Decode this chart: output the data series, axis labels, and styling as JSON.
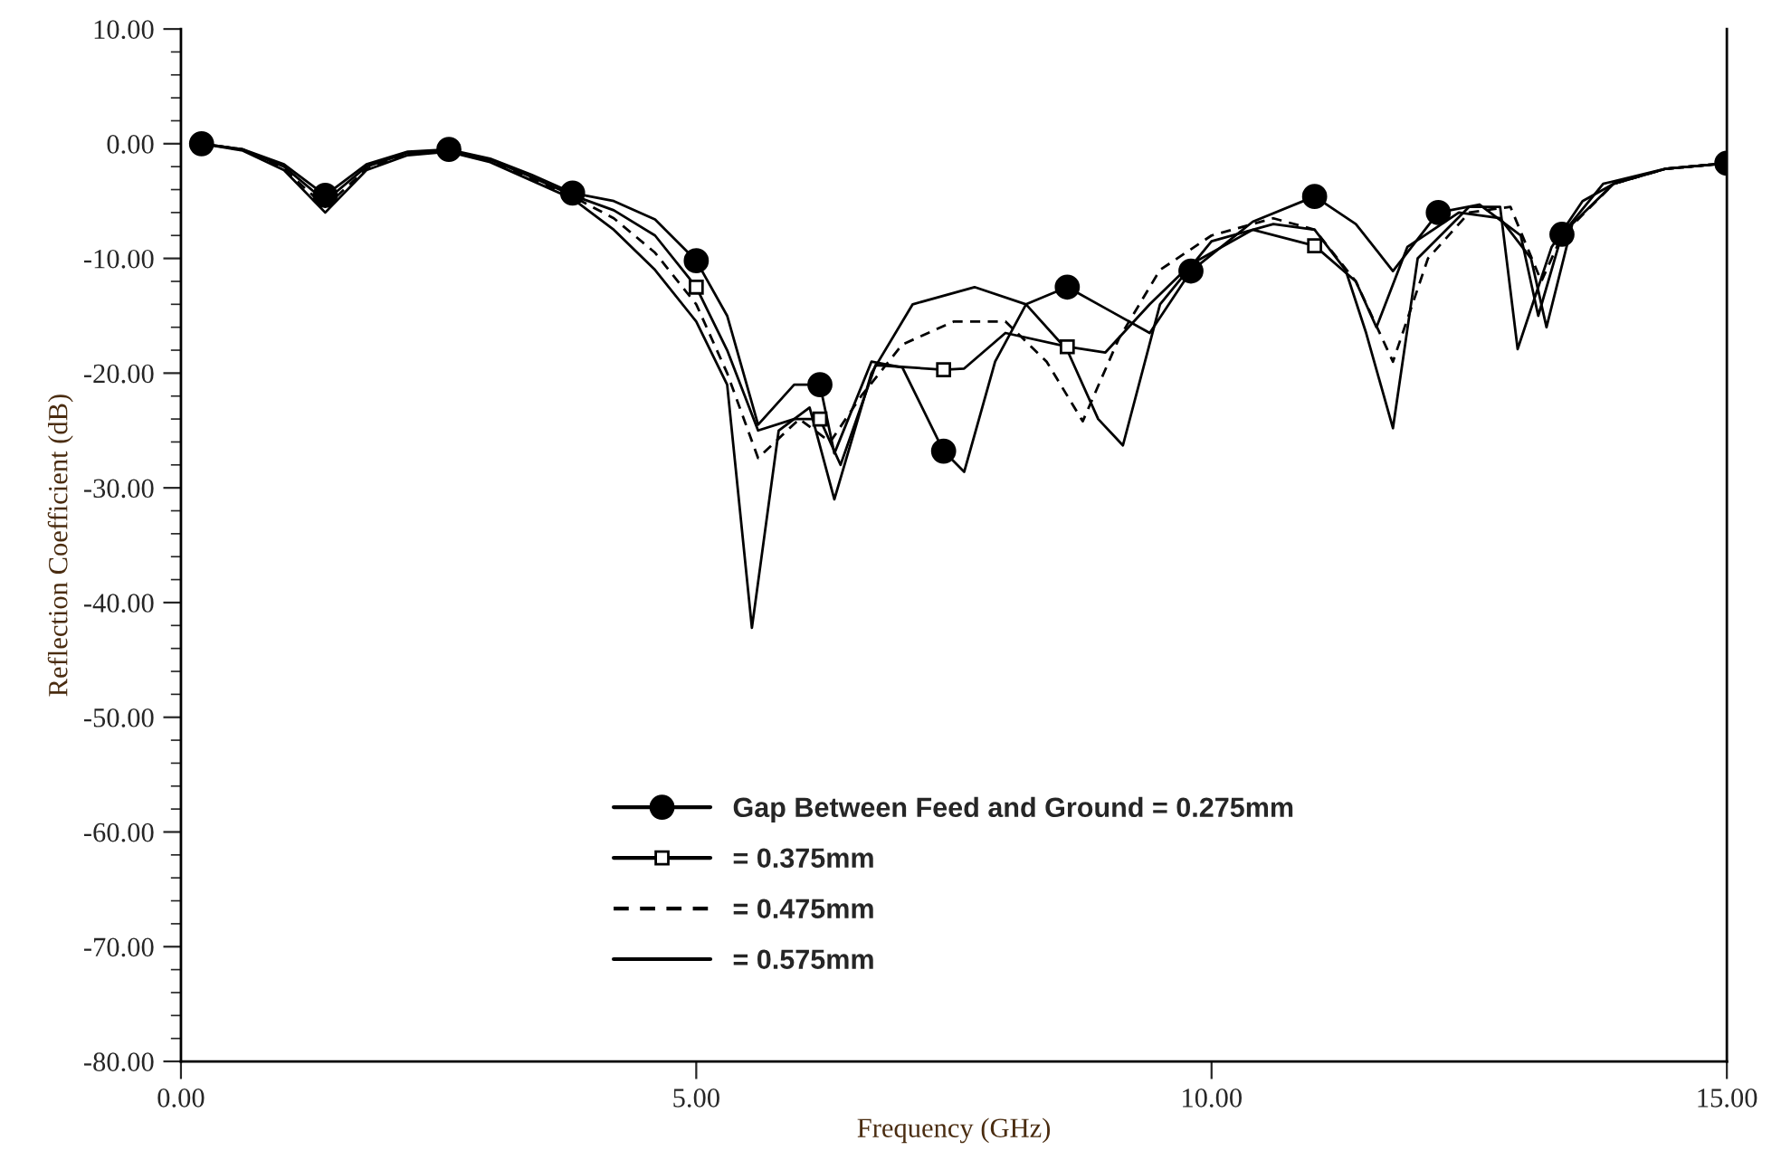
{
  "chart_data": {
    "type": "line",
    "xlabel": "Frequency (GHz)",
    "ylabel": "Reflection Coefficient (dB)",
    "xlim": [
      0,
      15
    ],
    "ylim": [
      -80,
      10
    ],
    "xticks": [
      {
        "value": 0,
        "label": "0.00"
      },
      {
        "value": 5,
        "label": "5.00"
      },
      {
        "value": 10,
        "label": "10.00"
      },
      {
        "value": 15,
        "label": "15.00"
      }
    ],
    "yticks": [
      {
        "value": 10,
        "label": "10.00"
      },
      {
        "value": 0,
        "label": "0.00"
      },
      {
        "value": -10,
        "label": "-10.00"
      },
      {
        "value": -20,
        "label": "-20.00"
      },
      {
        "value": -30,
        "label": "-30.00"
      },
      {
        "value": -40,
        "label": "-40.00"
      },
      {
        "value": -50,
        "label": "-50.00"
      },
      {
        "value": -60,
        "label": "-60.00"
      },
      {
        "value": -70,
        "label": "-70.00"
      },
      {
        "value": -80,
        "label": "-80.00"
      }
    ],
    "grid": false,
    "legend": "bottom",
    "series": [
      {
        "name": "Gap Between Feed and Ground = 0.275mm",
        "color": "#000000",
        "line_style": "solid",
        "x": [
          0.2,
          0.6,
          1.0,
          1.4,
          1.8,
          2.2,
          2.6,
          3.0,
          3.4,
          3.8,
          4.2,
          4.6,
          5.0,
          5.3,
          5.6,
          5.95,
          6.2,
          6.34,
          6.7,
          7.0,
          7.4,
          7.6,
          7.9,
          8.2,
          8.6,
          9.0,
          9.4,
          9.8,
          10.4,
          11.0,
          11.4,
          11.76,
          12.2,
          12.6,
          13.0,
          13.17,
          13.4,
          13.8,
          14.4,
          15
        ],
        "values": [
          0,
          -0.5,
          -1.8,
          -4.5,
          -1.8,
          -0.7,
          -0.5,
          -1.3,
          -2.7,
          -4.3,
          -5.0,
          -6.6,
          -10.2,
          -15,
          -24.5,
          -21,
          -21,
          -27,
          -19,
          -19.5,
          -26.8,
          -28.6,
          -19,
          -14,
          -12.5,
          -14.5,
          -16.5,
          -11.1,
          -6.8,
          -4.6,
          -7,
          -11.1,
          -6,
          -5.3,
          -8,
          -15,
          -7.9,
          -3.5,
          -2.2,
          -1.7
        ]
      },
      {
        "type": "scatter",
        "color": "#000000",
        "marker": "circle",
        "x": [
          0.2,
          1.4,
          2.6,
          3.8,
          5.0,
          6.2,
          7.4,
          8.6,
          9.8,
          11.0,
          12.2,
          13.4,
          15
        ],
        "values": [
          0,
          -4.5,
          -0.5,
          -4.3,
          -10.2,
          -21,
          -26.8,
          -12.5,
          -11.1,
          -4.6,
          -6,
          -7.9,
          -1.7
        ]
      },
      {
        "name": "= 0.375mm",
        "color": "#000000",
        "line_style": "solid",
        "x": [
          0.2,
          0.6,
          1.0,
          1.4,
          1.8,
          2.2,
          2.6,
          3.0,
          3.4,
          3.8,
          4.2,
          4.6,
          5.0,
          5.3,
          5.6,
          5.95,
          6.2,
          6.4,
          6.74,
          7.4,
          7.6,
          8.0,
          8.6,
          8.97,
          9.4,
          9.8,
          10.4,
          11.0,
          11.4,
          11.6,
          11.9,
          12.4,
          12.8,
          13.1,
          13.25,
          13.5,
          13.9,
          14.4,
          15
        ],
        "values": [
          0,
          -0.5,
          -2,
          -5,
          -2,
          -0.8,
          -0.6,
          -1.4,
          -2.9,
          -4.5,
          -5.8,
          -8,
          -12.5,
          -18,
          -25,
          -24,
          -24,
          -28,
          -19.3,
          -19.7,
          -19.6,
          -16.5,
          -17.7,
          -18.2,
          -14,
          -10.5,
          -7.5,
          -8.9,
          -12,
          -16,
          -9,
          -6,
          -6.5,
          -10,
          -16,
          -7,
          -3.5,
          -2.2,
          -1.7
        ]
      },
      {
        "type": "scatter",
        "color": "#000000",
        "marker": "square",
        "x": [
          5.0,
          6.2,
          7.4,
          8.6,
          11.0
        ],
        "values": [
          -12.5,
          -24,
          -19.7,
          -17.7,
          -8.9
        ]
      },
      {
        "name": "= 0.475mm",
        "color": "#000000",
        "line_style": "dashed",
        "x": [
          0.2,
          0.6,
          1.0,
          1.4,
          1.8,
          2.2,
          2.6,
          3.0,
          3.4,
          3.8,
          4.2,
          4.6,
          5.0,
          5.3,
          5.6,
          6.0,
          6.3,
          6.6,
          7.0,
          7.5,
          8.0,
          8.4,
          8.75,
          9.1,
          9.5,
          10.0,
          10.6,
          11.0,
          11.4,
          11.76,
          12.1,
          12.5,
          12.9,
          13.2,
          13.4,
          13.9,
          14.4,
          15
        ],
        "values": [
          0,
          -0.5,
          -2.2,
          -5.5,
          -2.2,
          -0.9,
          -0.6,
          -1.5,
          -3,
          -4.6,
          -6.5,
          -9.5,
          -14,
          -20,
          -27.4,
          -24,
          -26,
          -22,
          -17.5,
          -15.5,
          -15.5,
          -19,
          -24.2,
          -17,
          -11,
          -8,
          -6.5,
          -7.5,
          -12,
          -19,
          -10,
          -6,
          -5.5,
          -12,
          -8,
          -3.5,
          -2.2,
          -1.7
        ]
      },
      {
        "name": "= 0.575mm",
        "color": "#000000",
        "line_style": "solid",
        "x": [
          0.2,
          0.6,
          1.0,
          1.4,
          1.8,
          2.2,
          2.6,
          3.0,
          3.4,
          3.8,
          4.2,
          4.6,
          5.0,
          5.3,
          5.54,
          5.8,
          6.1,
          6.34,
          6.7,
          7.1,
          7.7,
          8.2,
          8.6,
          8.9,
          9.14,
          9.5,
          10.0,
          10.6,
          11.0,
          11.3,
          11.5,
          11.76,
          12.0,
          12.5,
          12.8,
          12.97,
          13.3,
          13.6,
          13.9,
          14.4,
          15
        ],
        "values": [
          0,
          -0.6,
          -2.3,
          -6,
          -2.3,
          -1,
          -0.7,
          -1.6,
          -3.2,
          -4.8,
          -7.5,
          -11,
          -15.5,
          -21,
          -42.2,
          -25,
          -23,
          -31,
          -20,
          -14,
          -12.5,
          -14,
          -18,
          -24,
          -26.3,
          -14,
          -8.5,
          -7,
          -7.5,
          -11,
          -16.5,
          -24.8,
          -10,
          -5.5,
          -5.5,
          -17.9,
          -9,
          -5,
          -3.5,
          -2.2,
          -1.7
        ]
      }
    ]
  }
}
